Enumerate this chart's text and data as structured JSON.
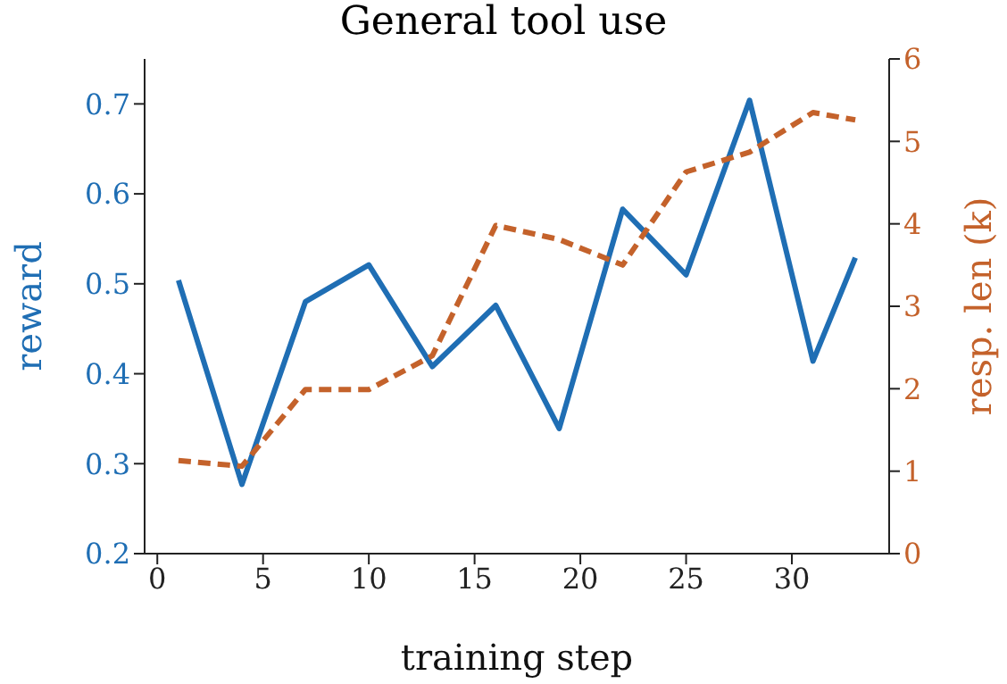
{
  "chart_data": {
    "type": "line",
    "title": "General tool use",
    "xlabel": "training step",
    "ylabel": "reward",
    "y2label": "resp. len (k)",
    "x": [
      1,
      4,
      7,
      10,
      13,
      16,
      19,
      22,
      25,
      28,
      31,
      33
    ],
    "series": [
      {
        "color": "#1f6eb4",
        "line_style": "solid",
        "values": [
          0.504,
          0.277,
          0.48,
          0.521,
          0.408,
          0.476,
          0.339,
          0.583,
          0.51,
          0.704,
          0.414,
          0.529
        ]
      },
      {
        "color": "#c4622b",
        "line_style": "dashed",
        "axis": "y2",
        "values": [
          1.13,
          1.06,
          1.99,
          1.99,
          2.4,
          3.98,
          3.81,
          3.5,
          4.63,
          4.87,
          5.35,
          5.26
        ]
      }
    ],
    "xlim": [
      -0.6,
      34.6
    ],
    "xticks": [
      0,
      5,
      10,
      15,
      20,
      25,
      30
    ],
    "ylim": [
      0.2,
      0.75
    ],
    "yticks": [
      0.2,
      0.3,
      0.4,
      0.5,
      0.6,
      0.7
    ],
    "y2lim": [
      0,
      6
    ],
    "y2ticks": [
      0,
      1,
      2,
      3,
      4,
      5,
      6
    ],
    "grid": false,
    "legend": false,
    "marker": "none"
  }
}
